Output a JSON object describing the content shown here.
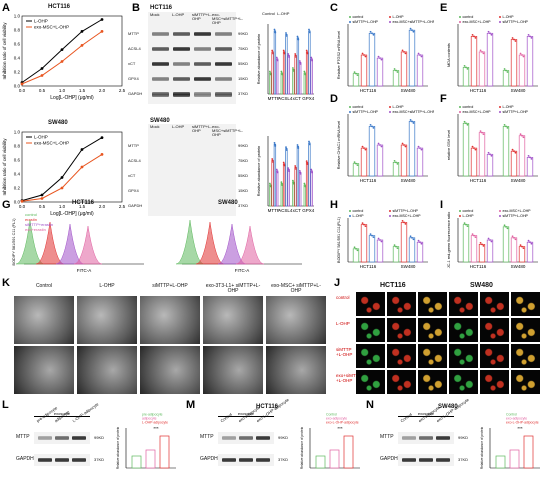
{
  "panels": {
    "A": "A",
    "B": "B",
    "C": "C",
    "D": "D",
    "E": "E",
    "F": "F",
    "G": "G",
    "H": "H",
    "I": "I",
    "J": "J",
    "K": "K",
    "L": "L",
    "M": "M",
    "N": "N"
  },
  "colors": {
    "loh": "#000000",
    "exo": "#e8541e",
    "green": "#5cb85c",
    "red": "#e03030",
    "blue": "#3a78c8",
    "purple": "#a050c8",
    "pink": "#e060a0"
  },
  "panelA": {
    "cell_line_top": "HCT116",
    "cell_line_bottom": "SW480",
    "legend": [
      "L-OHP",
      "exo-MSC+L-OHP"
    ],
    "ylabel": "Inhibition ratio of cell viability",
    "xlabel": "Log[L-OHP] (μg/ml)",
    "yticks": [
      "1.0",
      "0.8",
      "0.6",
      "0.4",
      "0.2",
      "0.0"
    ],
    "xticks": [
      "0.0",
      "0.5",
      "1.0",
      "1.5",
      "2.0",
      "2.5"
    ]
  },
  "panelB": {
    "top_title": "HCT116",
    "bottom_title": "SW480",
    "lanes": [
      "Mock",
      "L-OHP",
      "siMTTP+L-OHP",
      "exo-MSC+siMTTP+L-OHP"
    ],
    "proteins": [
      "MTTP",
      "ACSL4",
      "xCT",
      "GPX4",
      "GAPDH"
    ],
    "kd": [
      "99KD",
      "75KD",
      "55KD",
      "15KD",
      "37KD"
    ],
    "legend": [
      "Control",
      "L-OHP",
      "siMTTP+L-OHP",
      "exo-MSC+siMTTP+L-OHP"
    ],
    "ylabel": "Relative abundance of protein",
    "xcats": [
      "MTTP",
      "ACSL4",
      "xCT",
      "GPX4"
    ]
  },
  "panelC": {
    "legend": [
      "control",
      "L-OHP",
      "siMTTP+L-OHP",
      "exo-MSC+siMTTP+L-OHP"
    ],
    "ylabel": "Relative PTGS2 mRNA level",
    "xcats": [
      "HCT116",
      "SW480"
    ]
  },
  "panelD": {
    "legend": [
      "control",
      "L-OHP",
      "siMTTP+L-OHP",
      "exo-MSC+siMTTP+L-OHP"
    ],
    "ylabel": "Relative CHAC1 mRNA level",
    "xcats": [
      "HCT116",
      "SW480"
    ]
  },
  "panelE": {
    "legend": [
      "control",
      "L-OHP",
      "exo-MSC+L-OHP",
      "siMTTP+L-OHP"
    ],
    "ylabel": "MDA contents",
    "xcats": [
      "HCT116",
      "SW480"
    ]
  },
  "panelF": {
    "legend": [
      "control",
      "L-OHP",
      "exo-MSC+L-OHP",
      "siMTTP+L-OHP"
    ],
    "ylabel": "relative GSH level",
    "xcats": [
      "HCT116",
      "SW480"
    ]
  },
  "panelG": {
    "left_title": "HCT116",
    "right_title": "SW480",
    "legend": [
      "control",
      "erastin",
      "siMTTP+erastin",
      "exo+erastin"
    ],
    "ylabel": "BODIPY 581/591 C11 (FL1)",
    "xlabel": "FITC-A"
  },
  "panelH": {
    "legend": [
      "control",
      "siMTTP+L-OHP",
      "L-OHP",
      "exo-MSC+L-OHP"
    ],
    "ylabel": "BODIPY 581/591 C11(FL1)",
    "xcats": [
      "HCT116",
      "SW480"
    ]
  },
  "panelI": {
    "legend": [
      "control",
      "exo-MSC+L-OHP",
      "L-OHP",
      "siMTTP+L-OHP"
    ],
    "ylabel": "JC-1 red-green fluorescence ratio",
    "xcats": [
      "HCT116",
      "SW480"
    ]
  },
  "panelK": {
    "cols": [
      "Control",
      "L-OHP",
      "siMTTP+L-OHP",
      "exo-3T3-L1+ siMTTP+L-OHP",
      "exo-MSC+ siMTTP+L-OHP"
    ]
  },
  "panelJ": {
    "left_title": "HCT116",
    "right_title": "SW480",
    "rows": [
      "control",
      "L-OHP",
      "siMTTP +L-OHP",
      "exo+siMTTP +L-OHP"
    ]
  },
  "panelL": {
    "header": "exosome",
    "lanes": [
      "pre-adipocyte",
      "adipocyte",
      "L-OHP-adipocyte"
    ],
    "proteins": [
      "MTTP",
      "GAPDH"
    ],
    "kd": [
      "99KD",
      "37KD"
    ],
    "legend": [
      "pre-adipocyte",
      "adipocyte",
      "L-OHP-adipocyte"
    ],
    "ylabel": "Relative abundance of protein",
    "sig": "***"
  },
  "panelM": {
    "title": "HCT116",
    "header": "exosome",
    "lanes": [
      "Control",
      "exo-adipocyte",
      "exo-L-OHP-adipocyte"
    ],
    "proteins": [
      "MTTP",
      "GAPDH"
    ],
    "kd": [
      "99KD",
      "37KD"
    ],
    "legend": [
      "Control",
      "exo-adipocyte",
      "exo-L-OHP-adipocyte"
    ],
    "ylabel": "Relative abundance of protein",
    "sig": "***"
  },
  "panelN": {
    "title": "SW480",
    "header": "exosome",
    "lanes": [
      "Control",
      "exo-adipocyte",
      "exo-L-OHP-adipocyte"
    ],
    "proteins": [
      "MTTP",
      "GAPDH"
    ],
    "kd": [
      "99KD",
      "37KD"
    ],
    "legend": [
      "Control",
      "exo-adipocyte",
      "exo-L-OHP-adipocyte"
    ],
    "ylabel": "Relative abundance of protein",
    "sig": "***"
  },
  "chart_data": [
    {
      "type": "line",
      "panel": "A-HCT116",
      "x": [
        0.0,
        0.5,
        1.0,
        1.5,
        2.0
      ],
      "series": [
        {
          "name": "L-OHP",
          "values": [
            0.05,
            0.25,
            0.52,
            0.78,
            0.95
          ]
        },
        {
          "name": "exo-MSC+L-OHP",
          "values": [
            0.03,
            0.15,
            0.35,
            0.58,
            0.78
          ]
        }
      ],
      "xlim": [
        0,
        2.5
      ],
      "ylim": [
        0,
        1.0
      ]
    },
    {
      "type": "line",
      "panel": "A-SW480",
      "x": [
        0.0,
        0.5,
        1.0,
        1.5,
        2.0
      ],
      "series": [
        {
          "name": "L-OHP",
          "values": [
            0.02,
            0.1,
            0.35,
            0.75,
            0.92
          ]
        },
        {
          "name": "exo-MSC+L-OHP",
          "values": [
            0.01,
            0.05,
            0.2,
            0.5,
            0.68
          ]
        }
      ],
      "xlim": [
        0,
        2.5
      ],
      "ylim": [
        0,
        1.0
      ]
    }
  ]
}
